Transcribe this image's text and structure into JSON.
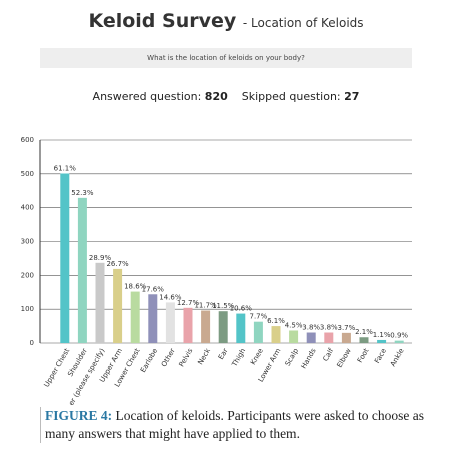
{
  "header": {
    "title": "Keloid Survey",
    "subtitle": "- Location of Keloids",
    "question": "What is the location of keloids on your body?",
    "answered_label": "Answered question:",
    "answered": 820,
    "skipped_label": "Skipped question:",
    "skipped": 27
  },
  "chart_data": {
    "type": "bar",
    "categories": [
      "Upper Chest",
      "Shoulder",
      "Other (please specify)",
      "Upper Arm",
      "Lower Chest",
      "Earlobe",
      "Other",
      "Pelvis",
      "Neck",
      "Ear",
      "Thigh",
      "Knee",
      "Lower Arm",
      "Scalp",
      "Hands",
      "Calf",
      "Elbow",
      "Foot",
      "Face",
      "Ankle"
    ],
    "values": [
      501,
      429,
      237,
      219,
      152,
      144,
      120,
      104,
      96,
      94,
      87,
      63,
      50,
      37,
      31,
      31,
      30,
      17,
      9,
      7
    ],
    "value_labels": [
      "61.1%",
      "52.3%",
      "28.9%",
      "26.7%",
      "18.6%",
      "17.6%",
      "14.6%",
      "12.7%",
      "11.7%",
      "11.5%",
      "10.6%",
      "7.7%",
      "6.1%",
      "4.5%",
      "3.8%",
      "3.8%",
      "3.7%",
      "2.1%",
      "1.1%",
      "0.9%"
    ],
    "colors": [
      "#53c4c8",
      "#8fd5c0",
      "#c9c9c9",
      "#d9cf8a",
      "#b9dba0",
      "#8f90b9",
      "#e2e2e2",
      "#e9a3aa",
      "#c9a990",
      "#7c9b82",
      "#53c4c8",
      "#8fd5c0",
      "#d9cf8a",
      "#b9dba0",
      "#8f90b9",
      "#e9a3aa",
      "#c9a990",
      "#7c9b82",
      "#53c4c8",
      "#8fd5c0"
    ],
    "ylim": [
      0,
      600
    ],
    "yticks": [
      0,
      100,
      200,
      300,
      400,
      500,
      600
    ],
    "grid": true
  },
  "caption": {
    "label": "FIGURE 4:",
    "text": "Location of keloids. Participants were asked to choose as many answers that might have applied to them."
  }
}
